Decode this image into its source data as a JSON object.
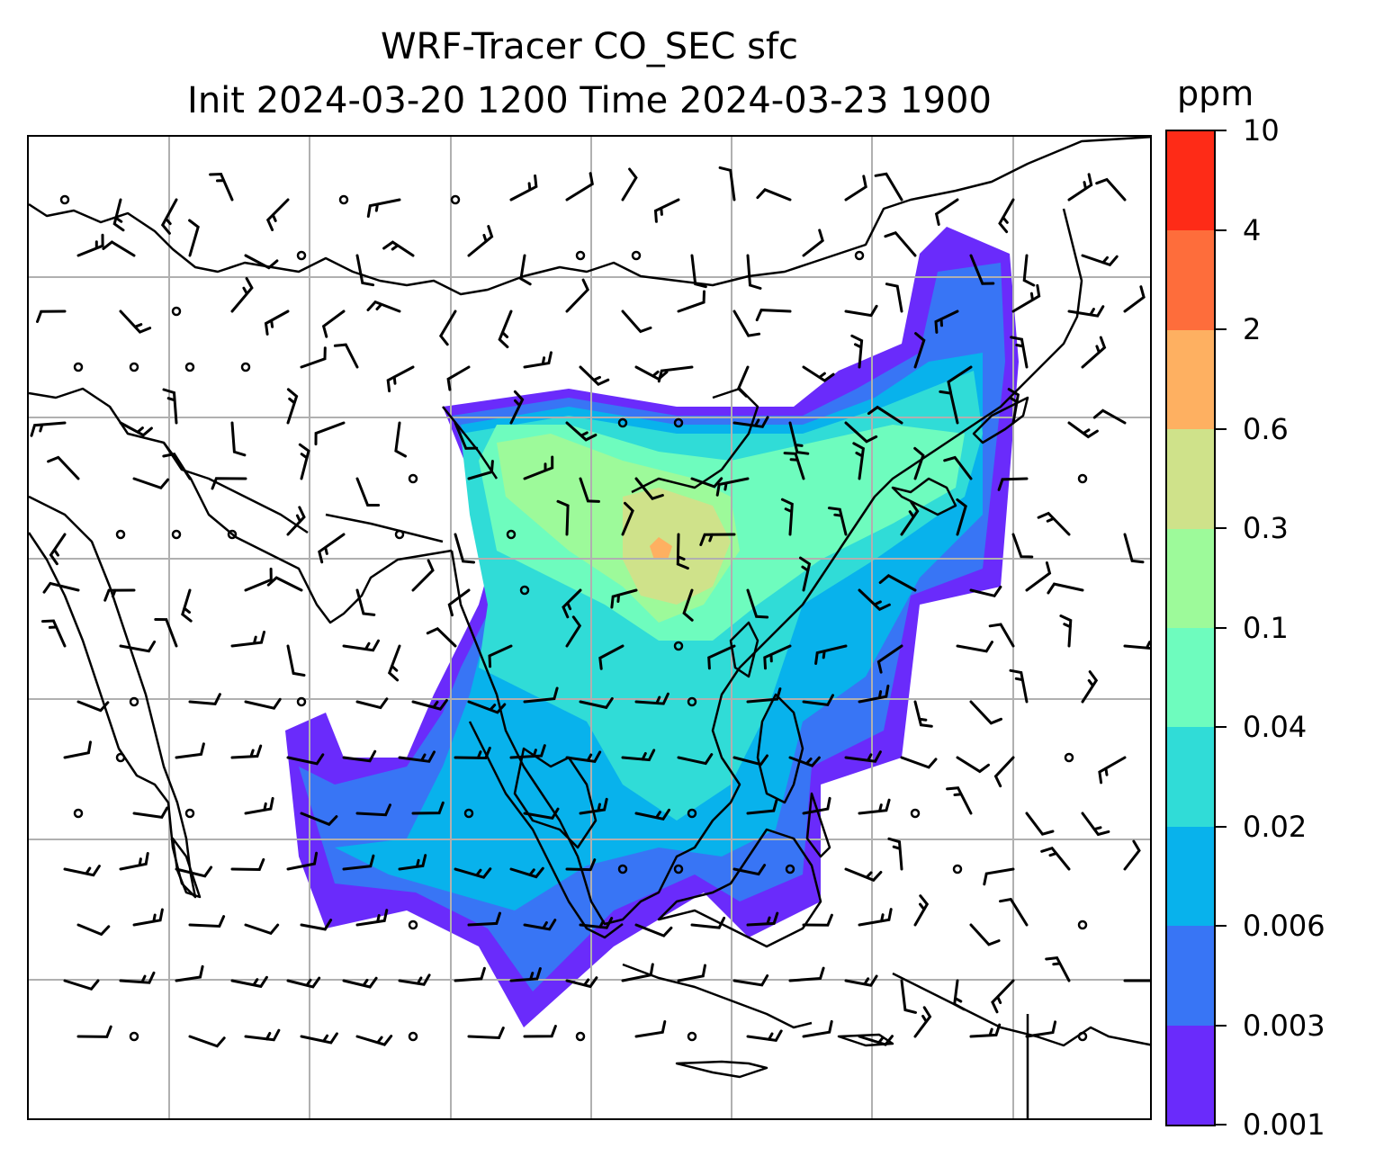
{
  "title_line1": "WRF-Tracer CO_SEC sfc",
  "title_line2": "Init 2024-03-20 1200 Time 2024-03-23 1900",
  "colorbar": {
    "unit": "ppm",
    "tick_labels": [
      "0.001",
      "0.003",
      "0.006",
      "0.02",
      "0.04",
      "0.1",
      "0.3",
      "0.6",
      "2",
      "4",
      "10"
    ],
    "colors": [
      "#6a2bfb",
      "#3875f5",
      "#08b2ec",
      "#30dcd7",
      "#6efcbe",
      "#9dfa9a",
      "#cfe28a",
      "#feb061",
      "#fe6d3b",
      "#fe2b17"
    ]
  },
  "map": {
    "grid": true,
    "coastline_color": "#000000",
    "gridline_color": "#b0b0b0",
    "overlay": "wind-barbs"
  }
}
